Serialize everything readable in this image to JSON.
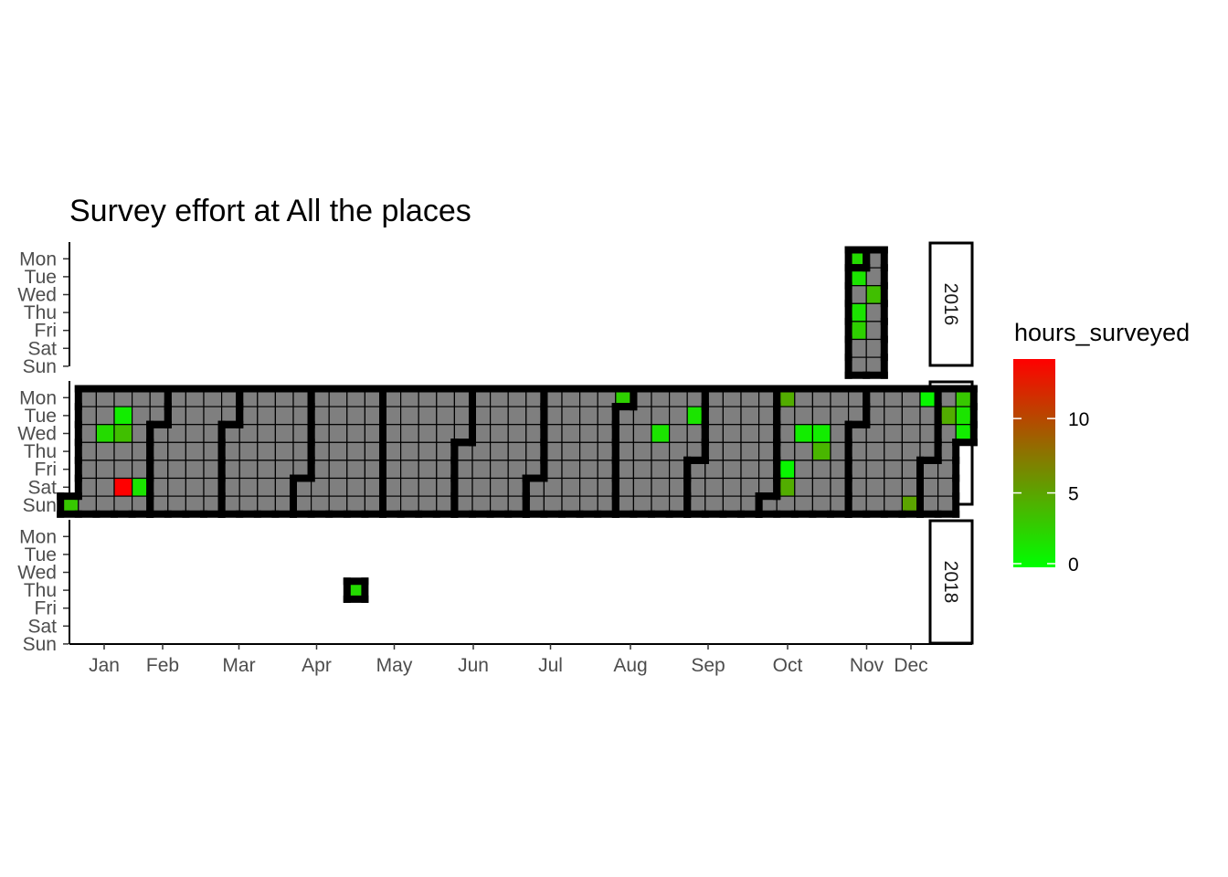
{
  "chart_data": {
    "type": "heatmap",
    "title": "Survey effort at All the places",
    "x_tick_labels": [
      "Jan",
      "Feb",
      "Mar",
      "Apr",
      "May",
      "Jun",
      "Jul",
      "Aug",
      "Sep",
      "Oct",
      "Nov",
      "Dec"
    ],
    "y_tick_labels": [
      "Mon",
      "Tue",
      "Wed",
      "Thu",
      "Fri",
      "Sat",
      "Sun"
    ],
    "facets": [
      "2016",
      "2017",
      "2018"
    ],
    "legend": {
      "title": "hours_surveyed",
      "breaks": [
        0,
        5,
        10
      ],
      "range": [
        0,
        14
      ],
      "colors": [
        "#00ff00",
        "#ff0000"
      ]
    },
    "colors": {
      "no_survey": "#7f7f7f",
      "cell_border": "#000000",
      "month_boundary": "#000000"
    },
    "survey_days": [
      {
        "year": "2016",
        "date": "2016-10-31",
        "hours": 2
      },
      {
        "year": "2016",
        "date": "2016-11-01",
        "hours": 1.5
      },
      {
        "year": "2016",
        "date": "2016-11-03",
        "hours": 1.5
      },
      {
        "year": "2016",
        "date": "2016-11-04",
        "hours": 2.5
      },
      {
        "year": "2016",
        "date": "2016-11-09",
        "hours": 3.5
      },
      {
        "year": "2017",
        "date": "2017-01-01",
        "hours": 3
      },
      {
        "year": "2017",
        "date": "2017-01-11",
        "hours": 2
      },
      {
        "year": "2017",
        "date": "2017-01-17",
        "hours": 1
      },
      {
        "year": "2017",
        "date": "2017-01-18",
        "hours": 3.5
      },
      {
        "year": "2017",
        "date": "2017-01-21",
        "hours": 14
      },
      {
        "year": "2017",
        "date": "2017-01-28",
        "hours": 1.5
      },
      {
        "year": "2017",
        "date": "2017-07-31",
        "hours": 2.5
      },
      {
        "year": "2017",
        "date": "2017-08-16",
        "hours": 1.5
      },
      {
        "year": "2017",
        "date": "2017-08-29",
        "hours": 1.5
      },
      {
        "year": "2017",
        "date": "2017-10-02",
        "hours": 4.5
      },
      {
        "year": "2017",
        "date": "2017-10-06",
        "hours": 0.5
      },
      {
        "year": "2017",
        "date": "2017-10-07",
        "hours": 4.5
      },
      {
        "year": "2017",
        "date": "2017-10-11",
        "hours": 1
      },
      {
        "year": "2017",
        "date": "2017-10-18",
        "hours": 1
      },
      {
        "year": "2017",
        "date": "2017-10-19",
        "hours": 4
      },
      {
        "year": "2017",
        "date": "2017-11-26",
        "hours": 5
      },
      {
        "year": "2017",
        "date": "2017-11-27",
        "hours": 0.5
      },
      {
        "year": "2017",
        "date": "2017-12-05",
        "hours": 4.5
      },
      {
        "year": "2017",
        "date": "2017-12-11",
        "hours": 3
      },
      {
        "year": "2017",
        "date": "2017-12-12",
        "hours": 1.5
      },
      {
        "year": "2017",
        "date": "2017-12-13",
        "hours": 1
      },
      {
        "year": "2018",
        "date": "2018-04-19",
        "hours": 2
      }
    ],
    "surveyed_ranges": [
      {
        "year": "2016",
        "start": "2016-10-31",
        "end": "2016-11-13"
      },
      {
        "year": "2017",
        "start": "2017-01-01",
        "end": "2017-12-10"
      },
      {
        "year": "2017",
        "start": "2017-12-11",
        "end": "2017-12-13"
      },
      {
        "year": "2018",
        "start": "2018-04-19",
        "end": "2018-04-19"
      }
    ]
  }
}
